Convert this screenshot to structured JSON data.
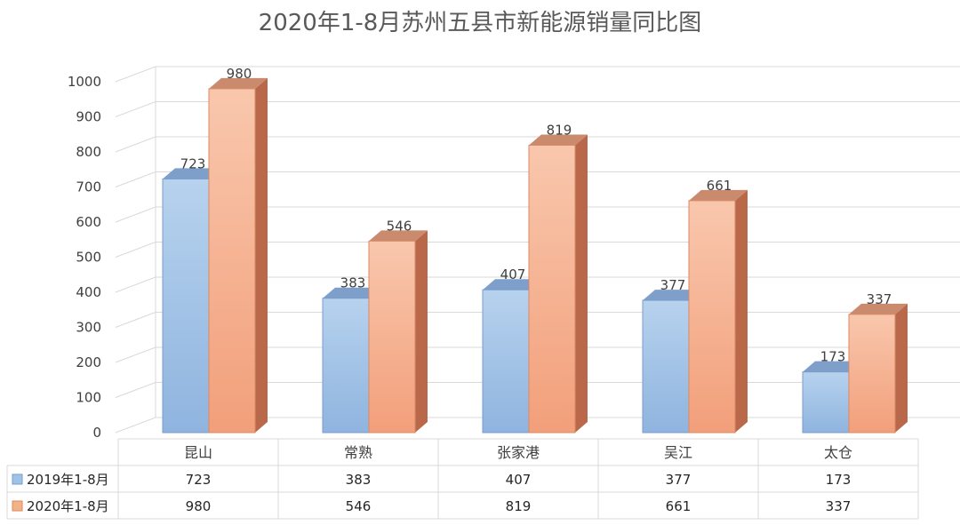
{
  "chart_data": {
    "type": "bar",
    "title": "2020年1-8月苏州五县市新能源销量同比图",
    "categories": [
      "昆山",
      "常熟",
      "张家港",
      "吴江",
      "太仓"
    ],
    "series": [
      {
        "name": "2019年1-8月",
        "values": [
          723,
          383,
          407,
          377,
          173
        ],
        "color": "#9dc3e6"
      },
      {
        "name": "2020年1-8月",
        "values": [
          980,
          546,
          819,
          661,
          337
        ],
        "color": "#f4b183"
      }
    ],
    "ylim": [
      0,
      1000
    ],
    "yticks": [
      "0",
      "100",
      "200",
      "300",
      "400",
      "500",
      "600",
      "700",
      "800",
      "900",
      "1000"
    ],
    "grid": true,
    "legend": "data-table"
  }
}
